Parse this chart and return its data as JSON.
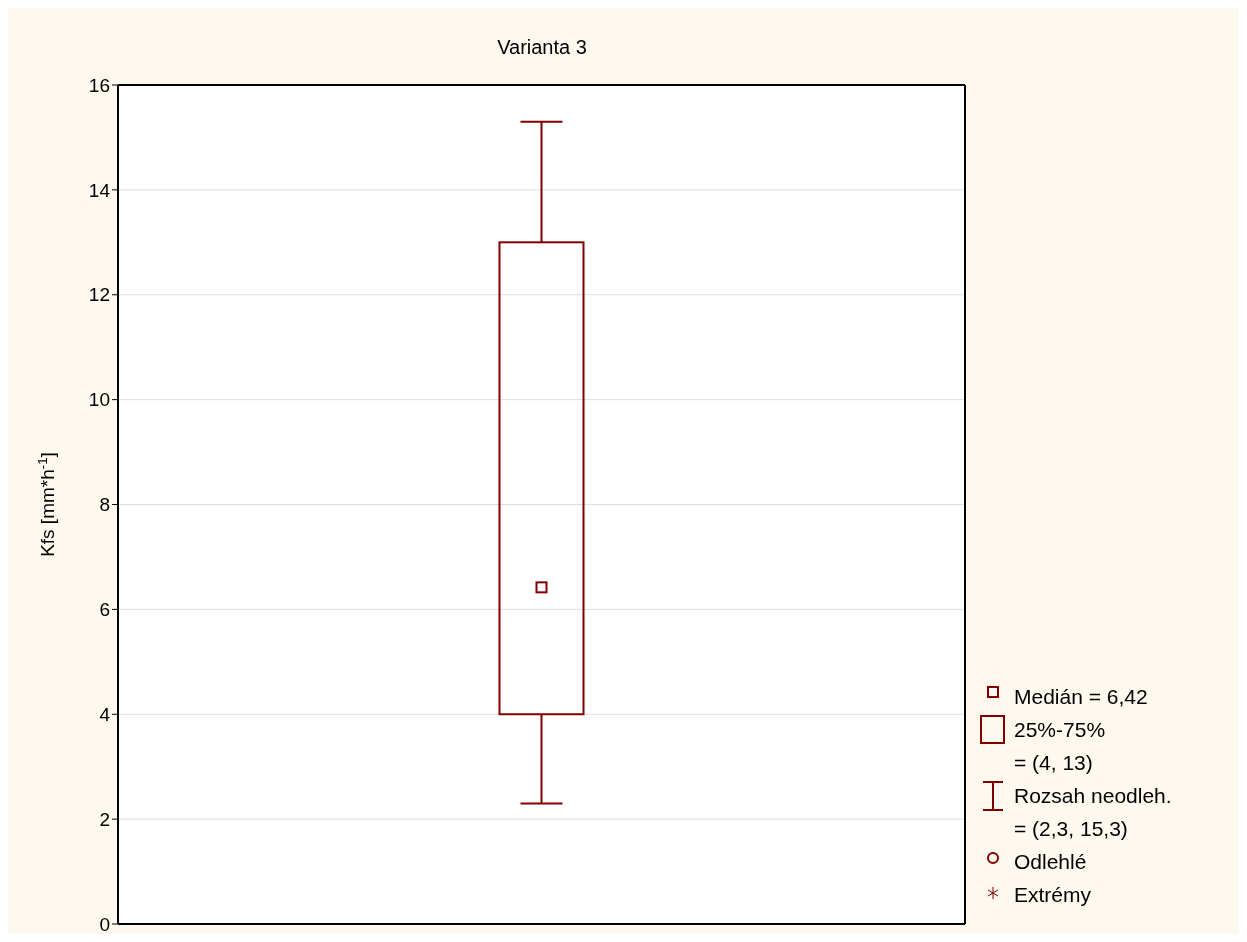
{
  "chart_data": {
    "type": "box",
    "title": "Varianta 3",
    "ylabel": "Kfs [mm*h$^{-1}$]",
    "categories": [
      null
    ],
    "color": "#800000",
    "boxes": [
      {
        "low": 2.3,
        "q1": 4,
        "median": 6.42,
        "q3": 13,
        "high": 15.3
      }
    ],
    "ylim": [
      0,
      16
    ],
    "yticks": [
      0,
      2,
      4,
      6,
      8,
      10,
      12,
      14,
      16
    ],
    "grid": "y",
    "marker": "square",
    "annotations": [
      "Medián = 6,42",
      "25%-75%",
      "= (4, 13)",
      "Rozsah neodleh.",
      "= (2,3, 15,3)",
      "Odlehlé",
      "Extrémy"
    ]
  }
}
